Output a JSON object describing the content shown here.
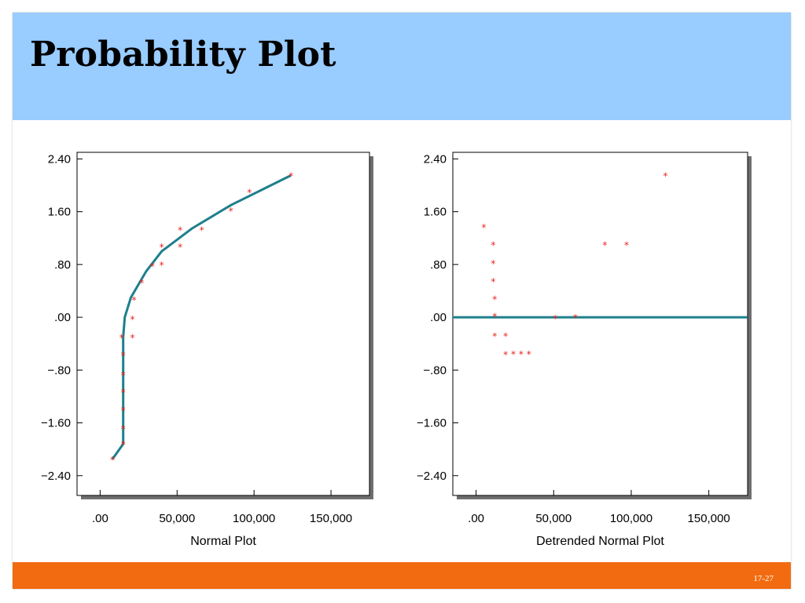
{
  "slide": {
    "title": "Probability Plot",
    "slide_number": "17-27"
  },
  "colors": {
    "header": "#99ccff",
    "footer": "#f26b10",
    "line": "#1e7f8c",
    "marker": "#e8231f",
    "frame": "#000000",
    "shadow": "#6e6e6e"
  },
  "chart_data": [
    {
      "type": "scatter",
      "title": "",
      "xlabel": "Normal Plot",
      "ylabel": "",
      "xlim": [
        -15000,
        175000
      ],
      "ylim": [
        -2.7,
        2.5
      ],
      "x_ticks": [
        0,
        50000,
        100000,
        150000
      ],
      "x_tick_labels": [
        ".00",
        "50,000",
        "100,000",
        "150,000"
      ],
      "y_ticks": [
        2.4,
        1.6,
        0.8,
        0,
        -0.8,
        -1.6,
        -2.4
      ],
      "y_tick_labels": [
        "2.40",
        "1.60",
        ".80",
        ".00",
        "−.80",
        "−1.60",
        "−2.40"
      ],
      "grid": false,
      "marker": "*",
      "points": [
        {
          "x": 8000,
          "y": -2.15
        },
        {
          "x": 15000,
          "y": -1.92
        },
        {
          "x": 15000,
          "y": -1.68
        },
        {
          "x": 15000,
          "y": -1.4
        },
        {
          "x": 15000,
          "y": -1.13
        },
        {
          "x": 15000,
          "y": -0.87
        },
        {
          "x": 15000,
          "y": -0.57
        },
        {
          "x": 14000,
          "y": -0.3
        },
        {
          "x": 21000,
          "y": -0.3
        },
        {
          "x": 21000,
          "y": -0.02
        },
        {
          "x": 22000,
          "y": 0.27
        },
        {
          "x": 27000,
          "y": 0.53
        },
        {
          "x": 34000,
          "y": 0.78
        },
        {
          "x": 40000,
          "y": 0.8
        },
        {
          "x": 40000,
          "y": 1.07
        },
        {
          "x": 52000,
          "y": 1.07
        },
        {
          "x": 52000,
          "y": 1.33
        },
        {
          "x": 66000,
          "y": 1.33
        },
        {
          "x": 85000,
          "y": 1.62
        },
        {
          "x": 97000,
          "y": 1.9
        },
        {
          "x": 124000,
          "y": 2.15
        }
      ],
      "line": {
        "x": [
          8000,
          15000,
          15000,
          16000,
          20000,
          30000,
          40000,
          60000,
          85000,
          124000
        ],
        "y": [
          -2.15,
          -1.92,
          -0.3,
          0.0,
          0.3,
          0.7,
          1.0,
          1.35,
          1.7,
          2.15
        ]
      }
    },
    {
      "type": "scatter",
      "title": "",
      "xlabel": "Detrended Normal Plot",
      "ylabel": "",
      "xlim": [
        -15000,
        175000
      ],
      "ylim": [
        -2.7,
        2.5
      ],
      "x_ticks": [
        0,
        50000,
        100000,
        150000
      ],
      "x_tick_labels": [
        ".00",
        "50,000",
        "100,000",
        "150,000"
      ],
      "y_ticks": [
        2.4,
        1.6,
        0.8,
        0,
        -0.8,
        -1.6,
        -2.4
      ],
      "y_tick_labels": [
        "2.40",
        "1.60",
        ".80",
        ".00",
        "−.80",
        "−1.60",
        "−2.40"
      ],
      "grid": false,
      "marker": "*",
      "points": [
        {
          "x": 5000,
          "y": 1.37
        },
        {
          "x": 11000,
          "y": 1.1
        },
        {
          "x": 11000,
          "y": 0.82
        },
        {
          "x": 11000,
          "y": 0.55
        },
        {
          "x": 12000,
          "y": 0.28
        },
        {
          "x": 12000,
          "y": 0.02
        },
        {
          "x": 12000,
          "y": -0.28
        },
        {
          "x": 19000,
          "y": -0.28
        },
        {
          "x": 19000,
          "y": -0.56
        },
        {
          "x": 24000,
          "y": -0.55
        },
        {
          "x": 29000,
          "y": -0.55
        },
        {
          "x": 34000,
          "y": -0.55
        },
        {
          "x": 51000,
          "y": -0.01
        },
        {
          "x": 64000,
          "y": 0.0
        },
        {
          "x": 83000,
          "y": 1.1
        },
        {
          "x": 97000,
          "y": 1.1
        },
        {
          "x": 122000,
          "y": 2.15
        }
      ],
      "reference_line_y": 0
    }
  ]
}
